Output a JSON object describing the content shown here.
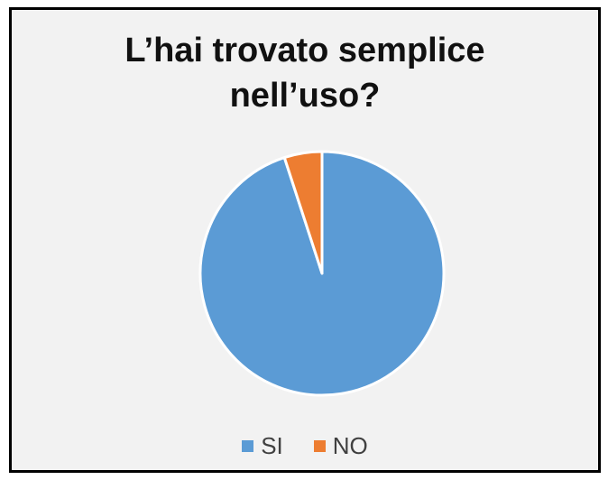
{
  "chart_data": {
    "type": "pie",
    "title": "L’hai trovato semplice\nnell’uso?",
    "categories": [
      "SI",
      "NO"
    ],
    "values": [
      95,
      5
    ],
    "colors": [
      "#5b9bd5",
      "#ed7d31"
    ],
    "start_angle": "12 o'clock, clockwise",
    "legend_position": "bottom"
  }
}
